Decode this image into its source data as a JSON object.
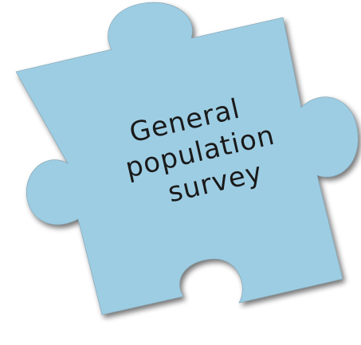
{
  "piece": {
    "fill": "#9dcde3",
    "shadow": "#000000",
    "text_color": "#1a1a1a",
    "label_lines": [
      "General",
      "population",
      "survey"
    ]
  }
}
